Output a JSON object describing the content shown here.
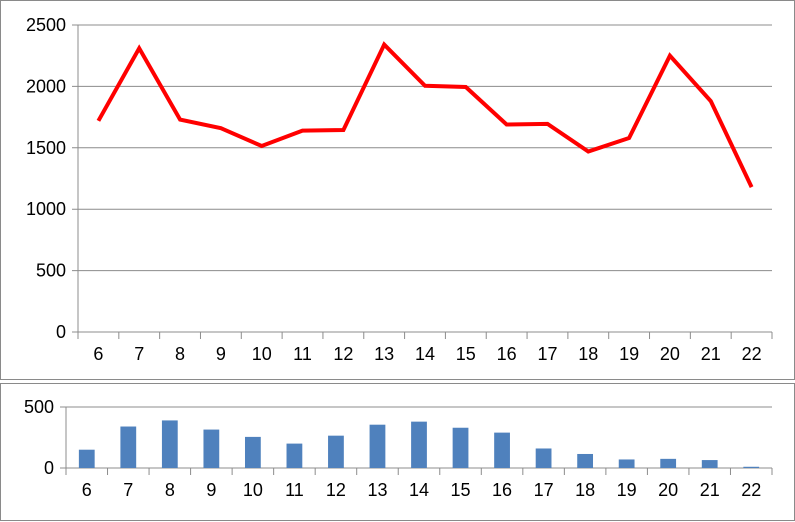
{
  "chart_data": [
    {
      "type": "line",
      "title": "",
      "xlabel": "",
      "ylabel": "",
      "categories": [
        "6",
        "7",
        "8",
        "9",
        "10",
        "11",
        "12",
        "13",
        "14",
        "15",
        "16",
        "17",
        "18",
        "19",
        "20",
        "21",
        "22"
      ],
      "series": [
        {
          "values": [
            1720,
            2310,
            1730,
            1660,
            1515,
            1640,
            1645,
            2340,
            2005,
            1995,
            1690,
            1695,
            1470,
            1580,
            2250,
            1880,
            1180
          ]
        }
      ],
      "ylim": [
        0,
        2500
      ],
      "yticks": [
        0,
        500,
        1000,
        1500,
        2000,
        2500
      ],
      "grid": true,
      "legend": "none",
      "color": "#ff0000"
    },
    {
      "type": "bar",
      "title": "",
      "xlabel": "",
      "ylabel": "",
      "categories": [
        "6",
        "7",
        "8",
        "9",
        "10",
        "11",
        "12",
        "13",
        "14",
        "15",
        "16",
        "17",
        "18",
        "19",
        "20",
        "21",
        "22"
      ],
      "series": [
        {
          "values": [
            150,
            340,
            390,
            315,
            255,
            200,
            265,
            355,
            380,
            330,
            290,
            160,
            115,
            70,
            75,
            65,
            10
          ]
        }
      ],
      "ylim": [
        0,
        500
      ],
      "yticks": [
        0,
        500
      ],
      "grid": true,
      "legend": "none",
      "color": "#4f81bd"
    }
  ]
}
